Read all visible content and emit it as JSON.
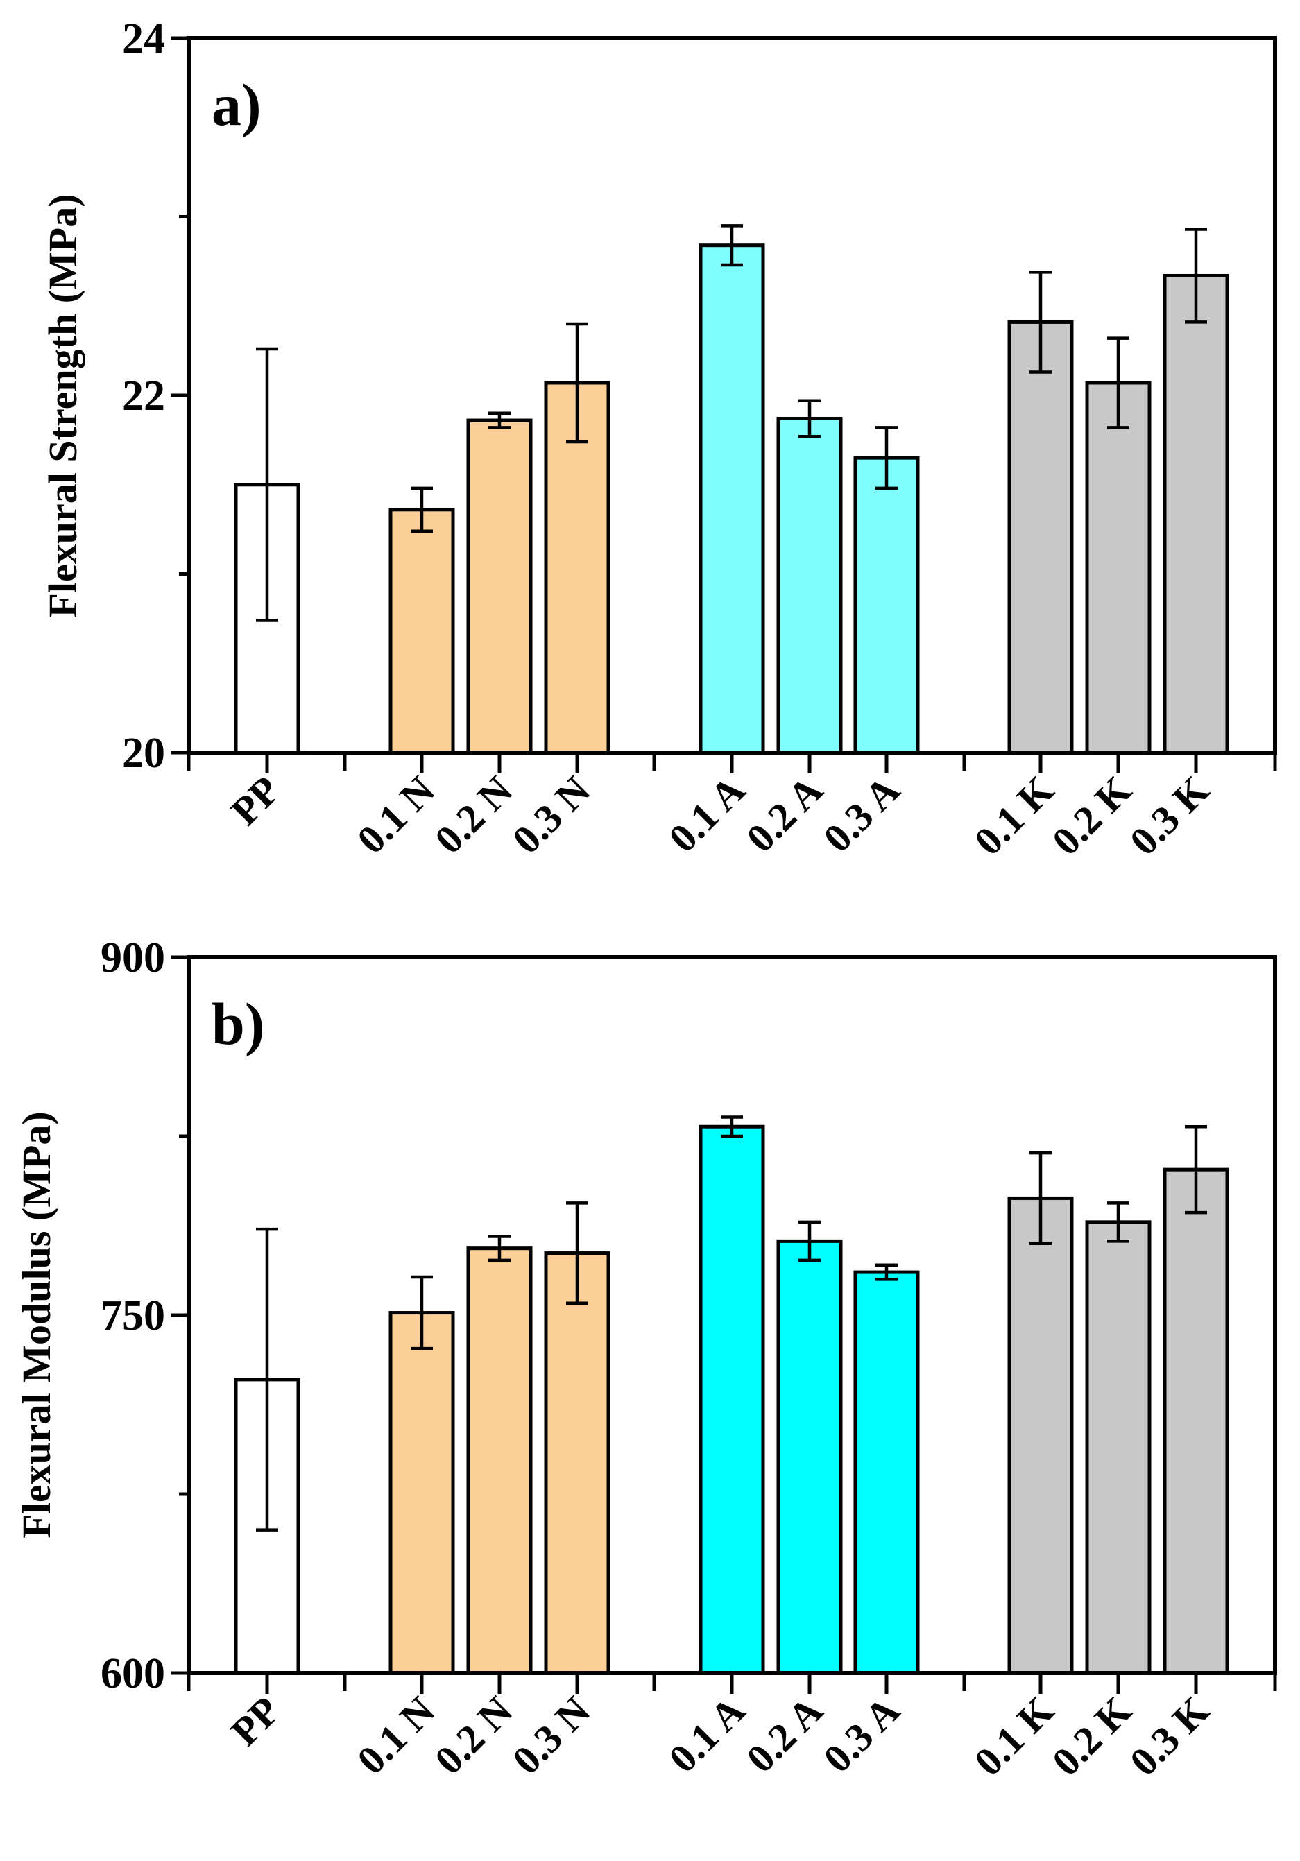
{
  "colors": {
    "PP": "#ffffff",
    "N": "#fccf98",
    "A_a": "#80fdfd",
    "A_b": "#00ffff",
    "K": "#c8c8c8",
    "stroke": "#000000"
  },
  "chart_data": [
    {
      "type": "bar",
      "panel_label": "a)",
      "ylabel": "Flexural Strength (MPa)",
      "ylim": [
        20,
        24
      ],
      "yticks": [
        20,
        22,
        24
      ],
      "categories": [
        "PP",
        "0.1 N",
        "0.2 N",
        "0.3 N",
        "0.1 A",
        "0.2 A",
        "0.3 A",
        "0.1 K",
        "0.2 K",
        "0.3 K"
      ],
      "groups": [
        "PP",
        "N",
        "N",
        "N",
        "A",
        "A",
        "A",
        "K",
        "K",
        "K"
      ],
      "values": [
        21.5,
        21.36,
        21.86,
        22.07,
        22.84,
        21.87,
        21.65,
        22.41,
        22.07,
        22.67
      ],
      "errors": [
        0.76,
        0.12,
        0.04,
        0.33,
        0.11,
        0.1,
        0.17,
        0.28,
        0.25,
        0.26
      ]
    },
    {
      "type": "bar",
      "panel_label": "b)",
      "ylabel": "Flexural Modulus (MPa)",
      "ylim": [
        600,
        900
      ],
      "yticks": [
        600,
        750,
        900
      ],
      "categories": [
        "PP",
        "0.1 N",
        "0.2 N",
        "0.3 N",
        "0.1 A",
        "0.2 A",
        "0.3 A",
        "0.1 K",
        "0.2 K",
        "0.3 K"
      ],
      "groups": [
        "PP",
        "N",
        "N",
        "N",
        "A",
        "A",
        "A",
        "K",
        "K",
        "K"
      ],
      "values": [
        723,
        751,
        778,
        776,
        829,
        781,
        768,
        799,
        789,
        811
      ],
      "errors": [
        63,
        15,
        5,
        21,
        4,
        8,
        3,
        19,
        8,
        18
      ]
    }
  ]
}
